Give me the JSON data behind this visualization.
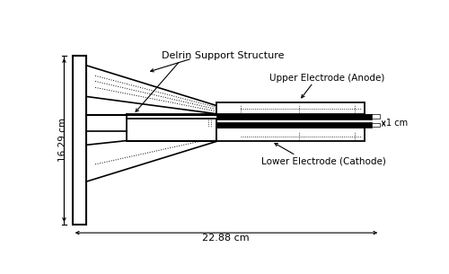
{
  "fig_width": 5.0,
  "fig_height": 3.05,
  "dpi": 100,
  "bg_color": "#ffffff",
  "line_color": "#000000",
  "label_16": "16.29 cm",
  "label_22": "22.88 cm",
  "label_1cm": "1 cm",
  "label_upper": "Upper Electrode (Anode)",
  "label_lower": "Lower Electrode (Cathode)",
  "label_delrin": "Delrin Support Structure"
}
